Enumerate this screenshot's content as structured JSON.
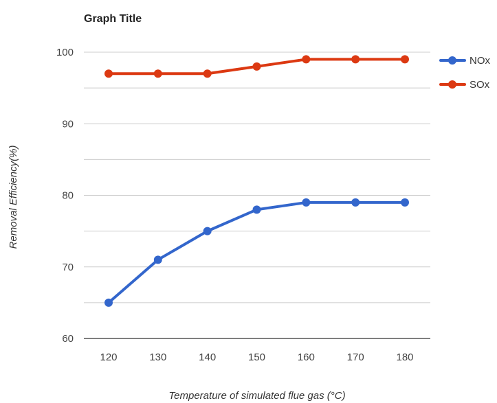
{
  "chart_data": {
    "type": "line",
    "title": "Graph Title",
    "xlabel": "Temperature of simulated flue gas (°C)",
    "ylabel": "Removal Efficiency(%)",
    "x": [
      120,
      130,
      140,
      150,
      160,
      170,
      180
    ],
    "x_ticks": [
      "120",
      "130",
      "140",
      "150",
      "160",
      "170",
      "180"
    ],
    "ylim": [
      60,
      100
    ],
    "y_ticks": [
      "60",
      "70",
      "80",
      "90",
      "100"
    ],
    "y_tick_values": [
      60,
      70,
      80,
      90,
      100
    ],
    "grid": true,
    "legend_position": "top-right",
    "series": [
      {
        "name": "NOx",
        "color": "#3366cc",
        "values": [
          65,
          71,
          75,
          78,
          79,
          79,
          79
        ]
      },
      {
        "name": "SOx",
        "color": "#dc3912",
        "values": [
          97,
          97,
          97,
          98,
          99,
          99,
          99
        ]
      }
    ]
  }
}
